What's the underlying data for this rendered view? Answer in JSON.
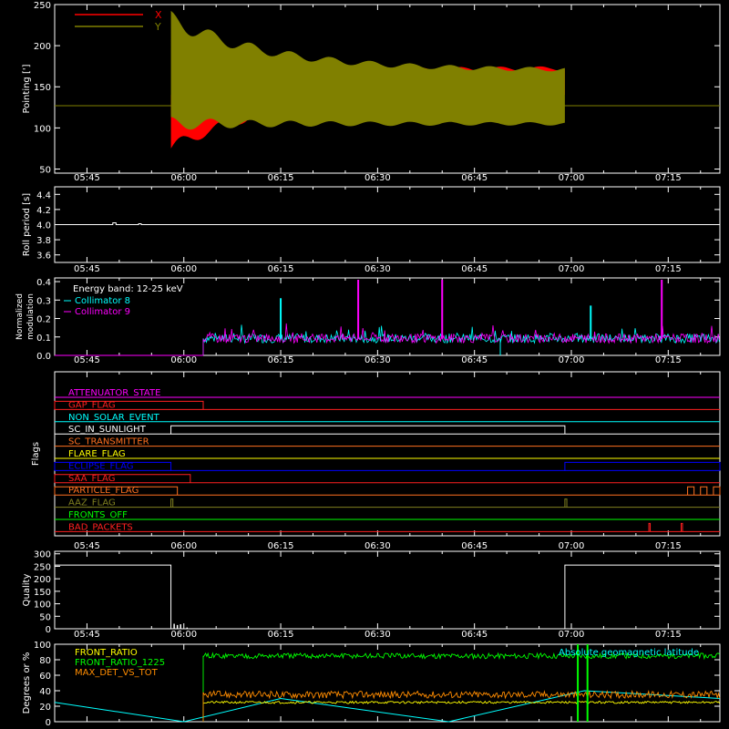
{
  "time_ticks": [
    "05:45",
    "06:00",
    "06:15",
    "06:30",
    "06:45",
    "07:00",
    "07:15"
  ],
  "colors": {
    "background": "#000000",
    "axes": "#ffffff",
    "pointing_x": "#ff0000",
    "pointing_y": "#808000",
    "collimator_8": "#00ffff",
    "collimator_9": "#ff00ff",
    "front_ratio": "#ffff00",
    "front_ratio_1225": "#00ff00",
    "max_det_vs_tot": "#ff8c00",
    "geomag_lat": "#00ffff"
  },
  "chart_data": [
    {
      "type": "area",
      "ylabel": "Pointing [']",
      "yticks": [
        "50",
        "100",
        "150",
        "200",
        "250"
      ],
      "ylim": [
        45,
        250
      ],
      "xlim": [
        "05:40",
        "07:23"
      ],
      "legend": [
        {
          "name": "X",
          "color": "#ff0000"
        },
        {
          "name": "Y",
          "color": "#808000"
        }
      ],
      "baseline_value": 127,
      "x_envelope": {
        "start": "05:58",
        "end": "06:59",
        "min_start": 75,
        "max_start": 140,
        "min_end": 143,
        "max_end": 173
      },
      "y_envelope": {
        "start": "05:58",
        "end": "06:59",
        "min_start": 105,
        "max_start": 232,
        "min_end": 105,
        "max_end": 170
      }
    },
    {
      "type": "line",
      "ylabel": "Roll period [s]",
      "yticks": [
        "3.6",
        "3.8",
        "4.0",
        "4.2",
        "4.4"
      ],
      "ylim": [
        3.5,
        4.5
      ],
      "value": 4.0
    },
    {
      "type": "line",
      "ylabel": "Normalized modulation",
      "ylabel_lines": [
        "Normalized",
        "modulation"
      ],
      "yticks": [
        "0.0",
        "0.1",
        "0.2",
        "0.3",
        "0.4"
      ],
      "ylim": [
        0,
        0.42
      ],
      "annotation": "Energy band: 12-25 keV",
      "series": [
        {
          "name": "Collimator 8",
          "color": "#00ffff",
          "baseline": 0.09,
          "start": "06:03"
        },
        {
          "name": "Collimator 9",
          "color": "#ff00ff",
          "baseline": 0.09,
          "start": "06:03"
        }
      ],
      "spikes": [
        {
          "x": "06:27",
          "y": 0.41,
          "series": "Collimator 9"
        },
        {
          "x": "06:40",
          "y": 0.41,
          "series": "Collimator 9"
        },
        {
          "x": "07:14",
          "y": 0.41,
          "series": "Collimator 9"
        },
        {
          "x": "06:15",
          "y": 0.31,
          "series": "Collimator 8"
        },
        {
          "x": "07:03",
          "y": 0.27,
          "series": "Collimator 8"
        }
      ]
    },
    {
      "type": "line",
      "ylabel": "Flags",
      "flags": [
        {
          "name": "ATTENUATOR_STATE",
          "color": "#ff00ff",
          "segments": []
        },
        {
          "name": "GAP_FLAG",
          "color": "#ff2020",
          "segments": [
            [
              "05:40",
              "06:03",
              1
            ]
          ]
        },
        {
          "name": "NON_SOLAR_EVENT",
          "color": "#00ffff",
          "segments": []
        },
        {
          "name": "SC_IN_SUNLIGHT",
          "color": "#ffffff",
          "segments": [
            [
              "05:58",
              "06:59",
              1
            ]
          ]
        },
        {
          "name": "SC_TRANSMITTER",
          "color": "#ff7020",
          "segments": []
        },
        {
          "name": "FLARE_FLAG",
          "color": "#ffff00",
          "segments": []
        },
        {
          "name": "ECLIPSE_FLAG",
          "color": "#0000ff",
          "segments": [
            [
              "05:40",
              "05:58",
              1
            ],
            [
              "06:59",
              "07:23",
              1
            ]
          ]
        },
        {
          "name": "SAA_FLAG",
          "color": "#ff2020",
          "segments": [
            [
              "05:40",
              "06:01",
              1
            ]
          ]
        },
        {
          "name": "PARTICLE_FLAG",
          "color": "#ff7020",
          "segments": [
            [
              "05:40",
              "05:59",
              1
            ],
            [
              "07:18",
              "07:19",
              1
            ],
            [
              "07:20",
              "07:21",
              1
            ],
            [
              "07:22",
              "07:23",
              1
            ]
          ]
        },
        {
          "name": "AAZ_FLAG",
          "color": "#808020",
          "segments": [
            [
              "05:58",
              "05:58.3",
              1
            ],
            [
              "06:59",
              "06:59.3",
              1
            ]
          ]
        },
        {
          "name": "FRONTS_OFF",
          "color": "#00ff00",
          "segments": []
        },
        {
          "name": "BAD_PACKETS",
          "color": "#ff2020",
          "segments": [
            [
              "07:12",
              "07:12.2",
              1
            ],
            [
              "07:17",
              "07:17.2",
              1
            ]
          ]
        }
      ]
    },
    {
      "type": "bar",
      "ylabel": "Quality",
      "yticks": [
        "0",
        "50",
        "100",
        "150",
        "200",
        "250",
        "300"
      ],
      "ylim": [
        0,
        310
      ],
      "segments": [
        {
          "start": "05:40",
          "end": "05:58",
          "value": 255
        },
        {
          "start": "05:58",
          "end": "06:59",
          "value": 0
        },
        {
          "start": "06:59",
          "end": "07:23",
          "value": 255
        }
      ],
      "spikes": [
        {
          "x": "05:58.5",
          "y": 20
        },
        {
          "x": "05:59",
          "y": 15
        },
        {
          "x": "05:59.5",
          "y": 18
        },
        {
          "x": "06:00.5",
          "y": 5
        }
      ]
    },
    {
      "type": "line",
      "ylabel": "Degrees or %",
      "yticks": [
        "0",
        "20",
        "40",
        "60",
        "80",
        "100"
      ],
      "ylim": [
        0,
        100
      ],
      "annotation": "Absolute geomagnetic latitude",
      "series": [
        {
          "name": "FRONT_RATIO",
          "color": "#ffff00",
          "level": 25,
          "start": "06:03"
        },
        {
          "name": "FRONT_RATIO_1225",
          "color": "#00ff00",
          "level": 85,
          "start": "06:03"
        },
        {
          "name": "MAX_DET_VS_TOT",
          "color": "#ff8c00",
          "level": 35,
          "start": "06:03"
        }
      ],
      "geomag_lat_points": [
        [
          "05:40",
          25
        ],
        [
          "06:00",
          0
        ],
        [
          "06:15",
          30
        ],
        [
          "06:41",
          0
        ],
        [
          "07:02",
          40
        ],
        [
          "07:23",
          30
        ]
      ]
    }
  ]
}
